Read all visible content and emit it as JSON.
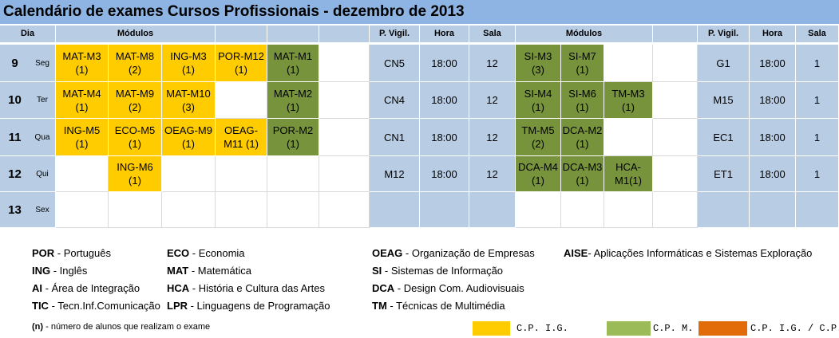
{
  "title": "Calendário de exames Cursos Profissionais - dezembro de 2013",
  "headers": {
    "dia": "Dia",
    "modulos_left": "Módulos",
    "pvigil_left": "P. Vigil.",
    "hora_left": "Hora",
    "sala_left": "Sala",
    "modulos_right": "Módulos",
    "pvigil_right": "P. Vigil.",
    "hora_right": "Hora",
    "sala_right": "Sala"
  },
  "rows": [
    {
      "day": "9",
      "weekday": "Seg",
      "left_modules": [
        {
          "line1": "MAT-M3",
          "line2": "(1)",
          "color": "yellow"
        },
        {
          "line1": "MAT-M8",
          "line2": "(2)",
          "color": "yellow"
        },
        {
          "line1": "ING-M3",
          "line2": "(1)",
          "color": "yellow"
        },
        {
          "line1": "POR-M12",
          "line2": "(1)",
          "color": "yellow"
        },
        {
          "line1": "MAT-M1",
          "line2": "(1)",
          "color": "green"
        },
        {
          "line1": "",
          "line2": "",
          "color": "empty"
        }
      ],
      "left_pvigil": "CN5",
      "left_hora": "18:00",
      "left_sala": "12",
      "right_modules": [
        {
          "line1": "SI-M3",
          "line2": "(3)",
          "color": "green"
        },
        {
          "line1": "SI-M7",
          "line2": "(1)",
          "color": "green"
        },
        {
          "line1": "",
          "line2": "",
          "color": "empty"
        },
        {
          "line1": "",
          "line2": "",
          "color": "empty"
        }
      ],
      "right_pvigil": "G1",
      "right_hora": "18:00",
      "right_sala": "1"
    },
    {
      "day": "10",
      "weekday": "Ter",
      "left_modules": [
        {
          "line1": "MAT-M4",
          "line2": "(1)",
          "color": "yellow"
        },
        {
          "line1": "MAT-M9",
          "line2": "(2)",
          "color": "yellow"
        },
        {
          "line1": "MAT-M10",
          "line2": "(3)",
          "color": "yellow"
        },
        {
          "line1": "",
          "line2": "",
          "color": "empty"
        },
        {
          "line1": "MAT-M2",
          "line2": "(1)",
          "color": "green"
        },
        {
          "line1": "",
          "line2": "",
          "color": "empty"
        }
      ],
      "left_pvigil": "CN4",
      "left_hora": "18:00",
      "left_sala": "12",
      "right_modules": [
        {
          "line1": "SI-M4",
          "line2": "(1)",
          "color": "green"
        },
        {
          "line1": "SI-M6",
          "line2": "(1)",
          "color": "green"
        },
        {
          "line1": "TM-M3",
          "line2": "(1)",
          "color": "green"
        },
        {
          "line1": "",
          "line2": "",
          "color": "empty"
        }
      ],
      "right_pvigil": "M15",
      "right_hora": "18:00",
      "right_sala": "1"
    },
    {
      "day": "11",
      "weekday": "Qua",
      "left_modules": [
        {
          "line1": "ING-M5",
          "line2": "(1)",
          "color": "yellow"
        },
        {
          "line1": "ECO-M5",
          "line2": "(1)",
          "color": "yellow"
        },
        {
          "line1": "OEAG-M9",
          "line2": "(1)",
          "color": "yellow"
        },
        {
          "line1": "OEAG-",
          "line2": "M11 (1)",
          "color": "yellow"
        },
        {
          "line1": "POR-M2",
          "line2": "(1)",
          "color": "green"
        },
        {
          "line1": "",
          "line2": "",
          "color": "empty"
        }
      ],
      "left_pvigil": "CN1",
      "left_hora": "18:00",
      "left_sala": "12",
      "right_modules": [
        {
          "line1": "TM-M5",
          "line2": "(2)",
          "color": "green"
        },
        {
          "line1": "DCA-M2",
          "line2": "(1)",
          "color": "green"
        },
        {
          "line1": "",
          "line2": "",
          "color": "empty"
        },
        {
          "line1": "",
          "line2": "",
          "color": "empty"
        }
      ],
      "right_pvigil": "EC1",
      "right_hora": "18:00",
      "right_sala": "1"
    },
    {
      "day": "12",
      "weekday": "Qui",
      "left_modules": [
        {
          "line1": "",
          "line2": "",
          "color": "empty"
        },
        {
          "line1": "ING-M6",
          "line2": "(1)",
          "color": "yellow"
        },
        {
          "line1": "",
          "line2": "",
          "color": "empty"
        },
        {
          "line1": "",
          "line2": "",
          "color": "empty"
        },
        {
          "line1": "",
          "line2": "",
          "color": "empty"
        },
        {
          "line1": "",
          "line2": "",
          "color": "empty"
        }
      ],
      "left_pvigil": "M12",
      "left_hora": "18:00",
      "left_sala": "12",
      "right_modules": [
        {
          "line1": "DCA-M4",
          "line2": "(1)",
          "color": "green"
        },
        {
          "line1": "DCA-M3",
          "line2": "(1)",
          "color": "green"
        },
        {
          "line1": "HCA-",
          "line2": "M1(1)",
          "color": "green"
        },
        {
          "line1": "",
          "line2": "",
          "color": "empty"
        }
      ],
      "right_pvigil": "ET1",
      "right_hora": "18:00",
      "right_sala": "1"
    },
    {
      "day": "13",
      "weekday": "Sex",
      "left_modules": [
        {
          "line1": "",
          "line2": "",
          "color": "empty"
        },
        {
          "line1": "",
          "line2": "",
          "color": "empty"
        },
        {
          "line1": "",
          "line2": "",
          "color": "empty"
        },
        {
          "line1": "",
          "line2": "",
          "color": "empty"
        },
        {
          "line1": "",
          "line2": "",
          "color": "empty"
        },
        {
          "line1": "",
          "line2": "",
          "color": "empty"
        }
      ],
      "left_pvigil": "",
      "left_hora": "",
      "left_sala": "",
      "right_modules": [
        {
          "line1": "",
          "line2": "",
          "color": "empty"
        },
        {
          "line1": "",
          "line2": "",
          "color": "empty"
        },
        {
          "line1": "",
          "line2": "",
          "color": "empty"
        },
        {
          "line1": "",
          "line2": "",
          "color": "empty"
        }
      ],
      "right_pvigil": "",
      "right_hora": "",
      "right_sala": ""
    }
  ],
  "legend": {
    "col1": [
      {
        "abbr": "POR",
        "text": " - Português"
      },
      {
        "abbr": "ING",
        "text": " - Inglês"
      },
      {
        "abbr": "AI",
        "text": " - Área de Integração"
      },
      {
        "abbr": "TIC",
        "text": " - Tecn.Inf.Comunicação"
      }
    ],
    "col2": [
      {
        "abbr": "ECO",
        "text": " - Economia"
      },
      {
        "abbr": "MAT",
        "text": " - Matemática"
      },
      {
        "abbr": "HCA",
        "text": " - História e Cultura das Artes"
      },
      {
        "abbr": "LPR",
        "text": " - Linguagens de Programação"
      }
    ],
    "col3": [
      {
        "abbr": "OEAG",
        "text": " - Organização de Empresas"
      },
      {
        "abbr": "SI",
        "text": " - Sistemas de Informação"
      },
      {
        "abbr": "DCA",
        "text": " - Design Com. Audiovisuais"
      },
      {
        "abbr": "TM",
        "text": " - Técnicas de Multimédia"
      }
    ],
    "col4": [
      {
        "abbr": "AISE",
        "text": "- Aplicações Informáticas e Sistemas Exploração"
      }
    ]
  },
  "note": {
    "abbr": "(n)",
    "text": " - número de alunos que realizam o exame"
  },
  "color_key": [
    {
      "label": "C.P. I.G.",
      "color": "#ffcc00"
    },
    {
      "label": "C.P. M.",
      "color": "#9bbb59"
    },
    {
      "label": "C.P. I.G. / C.P.M.",
      "color": "#e26b0a"
    }
  ],
  "colors": {
    "yellow": "#ffcc00",
    "green": "#77933c",
    "header": "#b8cce4",
    "title": "#8db4e2"
  }
}
